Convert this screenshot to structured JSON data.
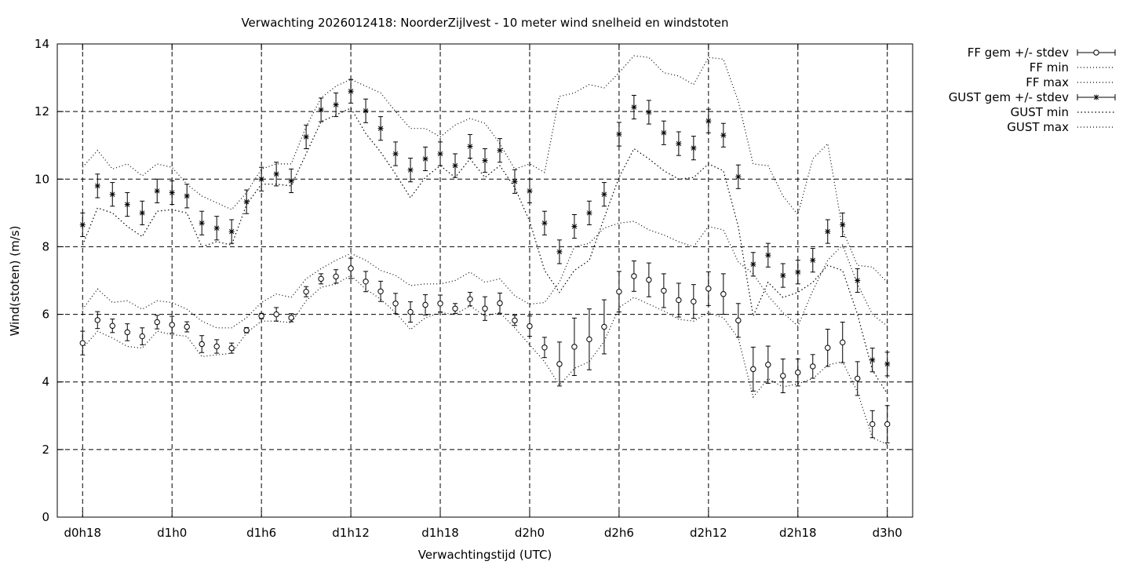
{
  "chart_data": {
    "type": "line",
    "title": "Verwachting 2026012418: NoorderZijlvest - 10 meter wind snelheid en windstoten",
    "xlabel": "Verwachtingstijd (UTC)",
    "ylabel": "Wind(stoten) (m/s)",
    "ylim": [
      0,
      14
    ],
    "yticks": [
      0,
      2,
      4,
      6,
      8,
      10,
      12,
      14
    ],
    "xticks": [
      {
        "x": 0,
        "label": "d0h18"
      },
      {
        "x": 6,
        "label": "d1h0"
      },
      {
        "x": 12,
        "label": "d1h6"
      },
      {
        "x": 18,
        "label": "d1h12"
      },
      {
        "x": 24,
        "label": "d1h18"
      },
      {
        "x": 30,
        "label": "d2h0"
      },
      {
        "x": 36,
        "label": "d2h6"
      },
      {
        "x": 42,
        "label": "d2h12"
      },
      {
        "x": 48,
        "label": "d2h18"
      },
      {
        "x": 54,
        "label": "d3h0"
      }
    ],
    "xlim": [
      -1.7,
      55.7
    ],
    "grid": true,
    "legend_position": "outside-right",
    "x": [
      0,
      1,
      2,
      3,
      4,
      5,
      6,
      7,
      8,
      9,
      10,
      11,
      12,
      13,
      14,
      15,
      16,
      17,
      18,
      19,
      20,
      21,
      22,
      23,
      24,
      25,
      26,
      27,
      28,
      29,
      30,
      31,
      32,
      33,
      34,
      35,
      36,
      37,
      38,
      39,
      40,
      41,
      42,
      43,
      44,
      45,
      46,
      47,
      48,
      49,
      50,
      51,
      52,
      53,
      54
    ],
    "series": [
      {
        "name": "FF gem +/- stdev",
        "style": "errorbar-circle",
        "values": [
          5.15,
          5.83,
          5.66,
          5.47,
          5.35,
          5.77,
          5.69,
          5.63,
          5.12,
          5.05,
          5.0,
          5.53,
          5.95,
          6.0,
          5.9,
          6.67,
          7.05,
          7.12,
          7.36,
          6.97,
          6.68,
          6.32,
          6.07,
          6.28,
          6.32,
          6.17,
          6.45,
          6.17,
          6.33,
          5.82,
          5.65,
          5.02,
          4.53,
          5.04,
          5.26,
          5.63,
          6.67,
          7.13,
          7.02,
          6.7,
          6.42,
          6.38,
          6.76,
          6.6,
          5.82,
          4.38,
          4.51,
          4.18,
          4.28,
          4.46,
          5.01,
          5.17,
          4.1,
          2.75,
          2.75
        ],
        "stdev": [
          0.35,
          0.25,
          0.2,
          0.25,
          0.25,
          0.2,
          0.25,
          0.15,
          0.25,
          0.2,
          0.15,
          0.08,
          0.08,
          0.2,
          0.12,
          0.15,
          0.15,
          0.2,
          0.3,
          0.3,
          0.3,
          0.3,
          0.3,
          0.3,
          0.25,
          0.15,
          0.2,
          0.35,
          0.3,
          0.15,
          0.3,
          0.3,
          0.65,
          0.85,
          0.9,
          0.8,
          0.6,
          0.45,
          0.5,
          0.5,
          0.5,
          0.5,
          0.5,
          0.6,
          0.5,
          0.65,
          0.55,
          0.5,
          0.4,
          0.35,
          0.55,
          0.6,
          0.5,
          0.4,
          0.55
        ]
      },
      {
        "name": "FF min",
        "style": "dotted",
        "values": [
          5.0,
          5.5,
          5.3,
          5.05,
          5.0,
          5.5,
          5.4,
          5.35,
          4.75,
          4.8,
          4.85,
          5.45,
          5.8,
          5.8,
          5.75,
          6.4,
          6.8,
          6.9,
          7.15,
          6.75,
          6.45,
          6.05,
          5.55,
          5.9,
          6.05,
          6.0,
          6.25,
          5.95,
          6.05,
          5.6,
          5.1,
          4.6,
          3.9,
          4.4,
          4.6,
          5.2,
          6.2,
          6.5,
          6.3,
          6.1,
          5.85,
          5.8,
          6.05,
          5.9,
          5.3,
          3.55,
          4.1,
          3.85,
          3.95,
          4.1,
          4.5,
          4.6,
          3.7,
          2.35,
          2.15
        ]
      },
      {
        "name": "FF max",
        "style": "dotted",
        "values": [
          6.15,
          6.75,
          6.35,
          6.4,
          6.15,
          6.4,
          6.35,
          6.15,
          5.8,
          5.6,
          5.6,
          5.9,
          6.35,
          6.6,
          6.5,
          7.05,
          7.35,
          7.6,
          7.8,
          7.6,
          7.3,
          7.15,
          6.85,
          6.9,
          6.9,
          7.0,
          7.25,
          6.95,
          7.05,
          6.55,
          6.3,
          6.35,
          6.95,
          8.0,
          8.1,
          8.55,
          8.7,
          8.75,
          8.5,
          8.35,
          8.15,
          8.0,
          8.6,
          8.5,
          7.55,
          7.2,
          6.55,
          6.05,
          5.65,
          6.7,
          7.6,
          8.05,
          6.9,
          6.0,
          5.65
        ]
      },
      {
        "name": "GUST gem +/- stdev",
        "style": "errorbar-star",
        "values": [
          8.65,
          9.8,
          9.55,
          9.25,
          9.0,
          9.65,
          9.6,
          9.5,
          8.7,
          8.55,
          8.45,
          9.33,
          10.0,
          10.15,
          9.95,
          11.25,
          12.05,
          12.2,
          12.6,
          12.02,
          11.5,
          10.75,
          10.27,
          10.6,
          10.75,
          10.4,
          10.97,
          10.55,
          10.85,
          9.93,
          9.65,
          8.7,
          7.85,
          8.6,
          9.0,
          9.55,
          11.33,
          12.13,
          11.98,
          11.37,
          11.05,
          10.92,
          11.72,
          11.3,
          10.07,
          7.48,
          7.75,
          7.15,
          7.25,
          7.6,
          8.45,
          8.65,
          7.0,
          4.65,
          4.53
        ]
      },
      {
        "name": "GUST min",
        "style": "densedots",
        "values": [
          8.05,
          9.15,
          9.0,
          8.6,
          8.3,
          9.05,
          9.1,
          9.0,
          8.0,
          8.15,
          8.05,
          9.25,
          9.85,
          9.85,
          9.8,
          10.75,
          11.7,
          11.9,
          12.1,
          11.35,
          10.8,
          10.15,
          9.45,
          10.05,
          10.4,
          10.05,
          10.6,
          10.05,
          10.4,
          9.75,
          8.75,
          7.3,
          6.65,
          7.3,
          7.6,
          8.85,
          10.05,
          10.9,
          10.6,
          10.25,
          10.0,
          10.05,
          10.45,
          10.25,
          8.6,
          5.95,
          6.95,
          6.5,
          6.65,
          6.95,
          7.45,
          7.3,
          6.0,
          4.35,
          3.65
        ]
      },
      {
        "name": "GUST max",
        "style": "dotted",
        "values": [
          10.35,
          10.85,
          10.3,
          10.45,
          10.1,
          10.45,
          10.35,
          9.85,
          9.5,
          9.3,
          9.1,
          9.6,
          10.3,
          10.45,
          10.45,
          11.55,
          12.4,
          12.75,
          12.95,
          12.75,
          12.55,
          12.0,
          11.5,
          11.5,
          11.25,
          11.6,
          11.8,
          11.65,
          11.05,
          10.3,
          10.45,
          10.2,
          12.45,
          12.55,
          12.8,
          12.7,
          13.15,
          13.65,
          13.6,
          13.15,
          13.05,
          12.8,
          13.6,
          13.55,
          12.3,
          10.45,
          10.4,
          9.5,
          8.95,
          10.6,
          11.05,
          8.5,
          7.45,
          7.4,
          6.95
        ]
      }
    ]
  }
}
